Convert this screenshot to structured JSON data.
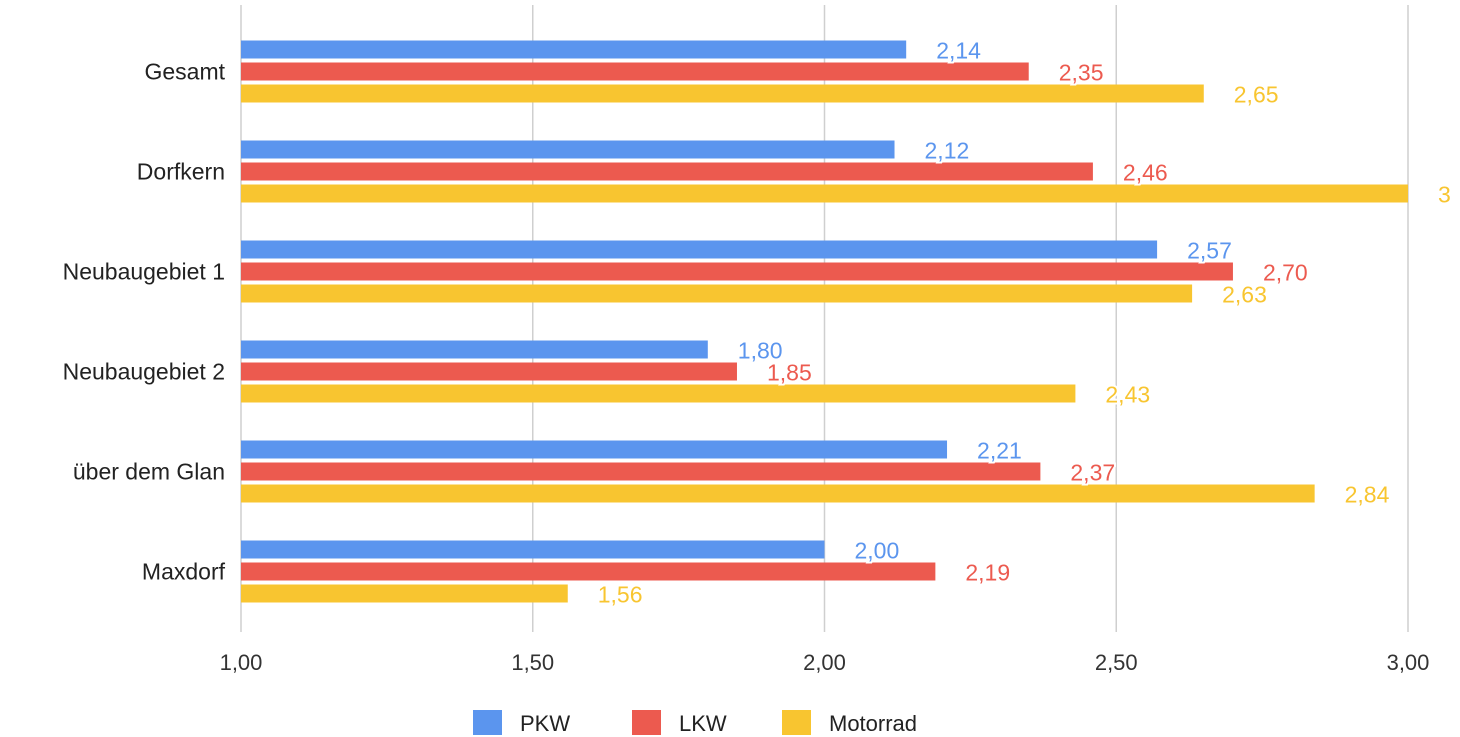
{
  "chart_data": {
    "type": "bar",
    "orientation": "horizontal",
    "title": "",
    "xlabel": "",
    "ylabel": "",
    "xlim": [
      1.0,
      3.0
    ],
    "x_ticks": [
      1.0,
      1.5,
      2.0,
      2.5,
      3.0
    ],
    "x_tick_labels": [
      "1,00",
      "1,50",
      "2,00",
      "2,50",
      "3,00"
    ],
    "grid": "vertical",
    "legend_position": "bottom-center",
    "categories": [
      "Gesamt",
      "Dorfkern",
      "Neubaugebiet 1",
      "Neubaugebiet 2",
      "über dem Glan",
      "Maxdorf"
    ],
    "series": [
      {
        "name": "PKW",
        "color": "#5b95ee",
        "values": [
          2.14,
          2.12,
          2.57,
          1.8,
          2.21,
          2.0
        ],
        "labels": [
          "2,14",
          "2,12",
          "2,57",
          "1,80",
          "2,21",
          "2,00"
        ]
      },
      {
        "name": "LKW",
        "color": "#ec5a4f",
        "values": [
          2.35,
          2.46,
          2.7,
          1.85,
          2.37,
          2.19
        ],
        "labels": [
          "2,35",
          "2,46",
          "2,70",
          "1,85",
          "2,37",
          "2,19"
        ]
      },
      {
        "name": "Motorrad",
        "color": "#f8c530",
        "values": [
          2.65,
          3.0,
          2.63,
          2.43,
          2.84,
          1.56
        ],
        "labels": [
          "2,65",
          "3",
          "2,63",
          "2,43",
          "2,84",
          "1,56"
        ]
      }
    ]
  }
}
